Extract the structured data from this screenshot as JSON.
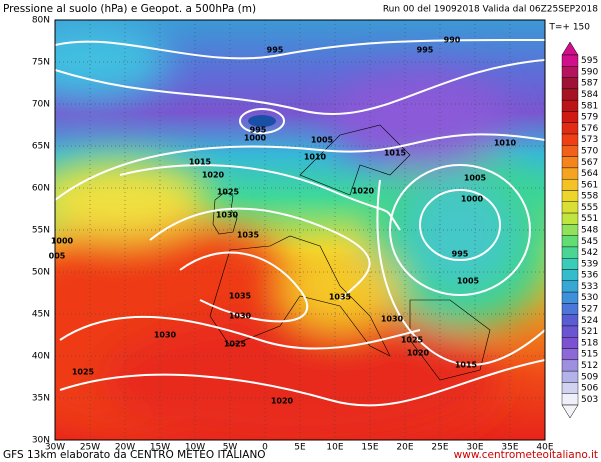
{
  "header": {
    "title": "Pressione al suolo (hPa) e Geopot. a 500hPa (m)",
    "run": "Run 00 del 19092018  Valida dal 06Z25SEP2018",
    "step": "T=+ 150"
  },
  "lat_labels": [
    "80N",
    "75N",
    "70N",
    "65N",
    "60N",
    "55N",
    "50N",
    "45N",
    "40N",
    "35N",
    "30N"
  ],
  "lon_labels": [
    "30W",
    "25W",
    "20W",
    "15W",
    "10W",
    "5W",
    "0",
    "5E",
    "10E",
    "15E",
    "20E",
    "25E",
    "30E",
    "35E",
    "40E"
  ],
  "colorbar": [
    "595",
    "590",
    "587",
    "584",
    "581",
    "579",
    "576",
    "573",
    "570",
    "567",
    "564",
    "561",
    "558",
    "555",
    "551",
    "548",
    "545",
    "542",
    "539",
    "536",
    "533",
    "530",
    "527",
    "524",
    "521",
    "518",
    "515",
    "512",
    "509",
    "506",
    "503"
  ],
  "isobar_labels": [
    "995",
    "995",
    "990",
    "995",
    "1000",
    "1005",
    "1010",
    "1015",
    "1010",
    "1015",
    "1020",
    "1005",
    "1020",
    "1000",
    "1025",
    "1030",
    "1035",
    "1000",
    "005",
    "995",
    "1005",
    "1035",
    "1035",
    "1030",
    "1030",
    "1030",
    "1025",
    "1025",
    "1020",
    "1015",
    "1025",
    "1020"
  ],
  "footer": {
    "credit": "GFS 13km elaborato da CENTRO METEO ITALIANO",
    "url": "www.centrometeoitaliano.it"
  }
}
